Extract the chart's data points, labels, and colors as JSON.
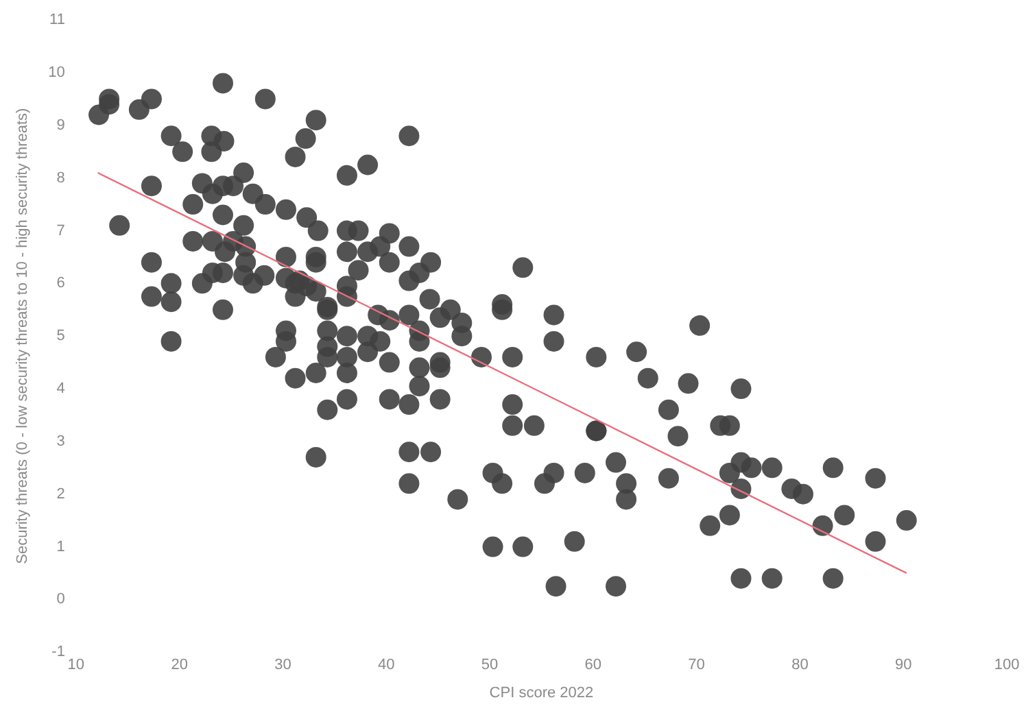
{
  "chart_data": {
    "type": "scatter",
    "xlabel": "CPI score 2022",
    "ylabel": "Security threats (0 - low security threats to 10 - high security threats)",
    "xlim": [
      10,
      100
    ],
    "xticks": [
      10,
      20,
      30,
      40,
      50,
      60,
      70,
      80,
      90,
      100
    ],
    "ylim": [
      -1,
      11
    ],
    "yticks": [
      -1,
      0,
      1,
      2,
      3,
      4,
      5,
      6,
      7,
      8,
      9,
      10,
      11
    ],
    "grid": false,
    "legend": false,
    "marker": "circle",
    "series": [
      {
        "color": "#404040",
        "x": [
          12.2,
          13.2,
          13.2,
          16.1,
          17.3,
          24.2,
          28.3,
          19.2,
          20.3,
          23.1,
          24.3,
          23.1,
          31.2,
          17.3,
          14.2,
          22.2,
          23.2,
          24.2,
          25.2,
          26.2,
          27.1,
          28.3,
          30.3,
          21.3,
          24.2,
          26.2,
          21.3,
          23.2,
          25.2,
          26.4,
          24.4,
          26.4,
          30.3,
          17.3,
          23.2,
          24.2,
          22.2,
          26.2,
          27.1,
          28.2,
          30.3,
          31.2,
          19.2,
          17.3,
          19.2,
          24.2,
          31.2,
          19.2,
          30.3,
          30.3,
          29.3,
          32.2,
          42.2,
          38.2,
          36.2,
          32.3,
          33.4,
          36.2,
          37.3,
          40.3,
          39.4,
          38.2,
          42.2,
          36.2,
          33.2,
          33.2,
          40.3,
          44.3,
          43.2,
          37.3,
          42.2,
          31.6,
          32.3,
          33.2,
          36.2,
          36.2,
          34.3,
          34.3,
          44.2,
          46.2,
          45.2,
          47.3,
          47.3,
          39.2,
          40.3,
          42.2,
          43.2,
          43.2,
          38.2,
          39.4,
          38.2,
          34.3,
          36.2,
          34.3,
          34.3,
          36.2,
          40.3,
          43.2,
          45.2,
          45.2,
          33.2,
          31.2,
          36.2,
          43.2,
          36.2,
          34.3,
          40.3,
          42.2,
          45.2,
          33.2,
          42.2,
          44.3,
          42.2,
          33.2,
          46.9,
          53.2,
          70.3,
          64.2,
          60.3,
          65.3,
          69.2,
          67.3,
          68.2,
          60.3,
          60.3,
          62.2,
          63.2,
          63.2,
          67.3,
          59.2,
          56.2,
          55.3,
          50.3,
          51.2,
          71.3,
          58.2,
          50.3,
          53.2,
          56.4,
          62.2,
          52.2,
          52.2,
          54.3,
          49.2,
          52.2,
          56.2,
          56.2,
          51.2,
          51.2,
          74.3,
          72.3,
          73.2,
          74.3,
          75.3,
          73.2,
          77.3,
          74.3,
          79.2,
          80.3,
          83.2,
          87.3,
          73.2,
          82.2,
          84.3,
          87.3,
          90.3,
          74.3,
          77.3,
          83.2
        ],
        "values": [
          9.2,
          9.5,
          9.4,
          9.3,
          9.5,
          9.8,
          9.5,
          8.8,
          8.5,
          8.8,
          8.7,
          8.5,
          8.4,
          7.85,
          7.1,
          7.9,
          7.7,
          7.85,
          7.85,
          8.1,
          7.7,
          7.5,
          7.4,
          7.5,
          7.3,
          7.1,
          6.8,
          6.8,
          6.8,
          6.7,
          6.6,
          6.4,
          6.5,
          6.4,
          6.2,
          6.2,
          6.0,
          6.15,
          6.0,
          6.15,
          6.1,
          6.0,
          6.0,
          5.75,
          5.65,
          5.5,
          5.75,
          4.9,
          5.1,
          4.9,
          4.6,
          8.75,
          8.8,
          8.25,
          8.05,
          7.25,
          7.0,
          7.0,
          7.0,
          6.95,
          6.7,
          6.6,
          6.7,
          6.6,
          6.5,
          6.4,
          6.4,
          6.4,
          6.2,
          6.25,
          6.05,
          6.05,
          5.95,
          5.85,
          5.95,
          5.75,
          5.55,
          5.5,
          5.7,
          5.5,
          5.35,
          5.25,
          5.0,
          5.4,
          5.3,
          5.4,
          5.1,
          4.9,
          5.0,
          4.9,
          4.7,
          5.1,
          5.0,
          4.8,
          4.6,
          4.6,
          4.5,
          4.4,
          4.5,
          4.4,
          4.3,
          4.2,
          4.3,
          4.05,
          3.8,
          3.6,
          3.8,
          3.7,
          3.8,
          2.7,
          2.8,
          2.8,
          2.2,
          9.1,
          1.9,
          6.3,
          5.2,
          4.7,
          4.6,
          4.2,
          4.1,
          3.6,
          3.1,
          3.2,
          3.2,
          2.6,
          2.2,
          1.9,
          2.3,
          2.4,
          2.4,
          2.2,
          2.4,
          2.2,
          1.4,
          1.1,
          1.0,
          1.0,
          0.25,
          0.25,
          3.7,
          3.3,
          3.3,
          4.6,
          4.6,
          5.4,
          4.9,
          5.6,
          5.5,
          4.0,
          3.3,
          3.3,
          2.6,
          2.5,
          2.4,
          2.5,
          2.1,
          2.1,
          2.0,
          2.5,
          2.3,
          1.6,
          1.4,
          1.6,
          1.1,
          1.5,
          0.4,
          0.4,
          0.4
        ]
      },
      {
        "type": "line",
        "color": "#e8707e",
        "marker": "none",
        "x": [
          12.1,
          90.3
        ],
        "values": [
          8.1,
          0.5
        ]
      }
    ]
  }
}
